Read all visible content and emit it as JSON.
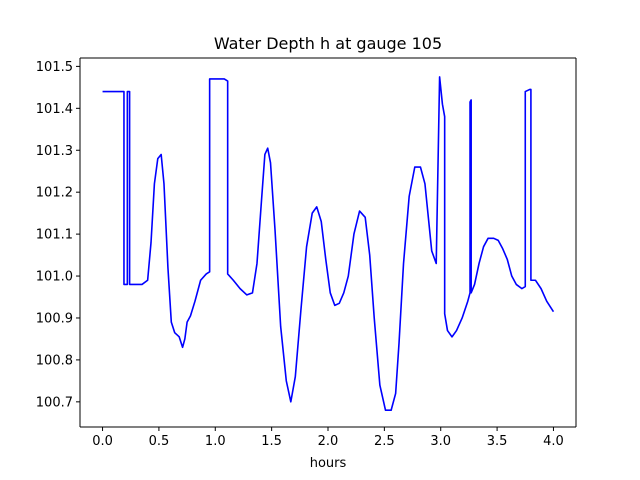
{
  "chart_data": {
    "type": "line",
    "title": "Water Depth h at gauge 105",
    "xlabel": "hours",
    "ylabel": "",
    "xlim": [
      -0.2,
      4.2
    ],
    "ylim": [
      100.64,
      101.52
    ],
    "grid": false,
    "legend": "none",
    "x_ticks": [
      0.0,
      0.5,
      1.0,
      1.5,
      2.0,
      2.5,
      3.0,
      3.5,
      4.0
    ],
    "x_tick_labels": [
      "0.0",
      "0.5",
      "1.0",
      "1.5",
      "2.0",
      "2.5",
      "3.0",
      "3.5",
      "4.0"
    ],
    "y_ticks": [
      100.7,
      100.8,
      100.9,
      101.0,
      101.1,
      101.2,
      101.3,
      101.4,
      101.5
    ],
    "y_tick_labels": [
      "100.7",
      "100.8",
      "100.9",
      "101.0",
      "101.1",
      "101.2",
      "101.3",
      "101.4",
      "101.5"
    ],
    "colors": {
      "series": "#0000ff",
      "axes": "#000000",
      "background": "#ffffff"
    },
    "series": [
      {
        "x": [
          0.0,
          0.19,
          0.19,
          0.22,
          0.22,
          0.24,
          0.24,
          0.28,
          0.35,
          0.4,
          0.43,
          0.46,
          0.49,
          0.52,
          0.545,
          0.58,
          0.61,
          0.64,
          0.68,
          0.71,
          0.73,
          0.75,
          0.78,
          0.82,
          0.87,
          0.92,
          0.95,
          0.95,
          1.0,
          1.08,
          1.11,
          1.11,
          1.16,
          1.22,
          1.28,
          1.33,
          1.37,
          1.41,
          1.44,
          1.465,
          1.49,
          1.53,
          1.58,
          1.63,
          1.67,
          1.71,
          1.76,
          1.81,
          1.86,
          1.9,
          1.94,
          1.98,
          2.02,
          2.06,
          2.1,
          2.14,
          2.18,
          2.23,
          2.28,
          2.33,
          2.37,
          2.41,
          2.46,
          2.51,
          2.56,
          2.6,
          2.63,
          2.67,
          2.72,
          2.77,
          2.82,
          2.86,
          2.89,
          2.92,
          2.96,
          2.99,
          2.99,
          3.015,
          3.035,
          3.035,
          3.06,
          3.1,
          3.14,
          3.19,
          3.24,
          3.26,
          3.26,
          3.27,
          3.27,
          3.3,
          3.34,
          3.38,
          3.42,
          3.47,
          3.51,
          3.55,
          3.59,
          3.63,
          3.67,
          3.72,
          3.75,
          3.75,
          3.79,
          3.8,
          3.8,
          3.84,
          3.89,
          3.94,
          4.0
        ],
        "y": [
          101.44,
          101.44,
          100.98,
          100.98,
          101.44,
          101.44,
          100.98,
          100.98,
          100.98,
          100.99,
          101.08,
          101.22,
          101.28,
          101.29,
          101.22,
          101.02,
          100.89,
          100.865,
          100.855,
          100.83,
          100.85,
          100.89,
          100.905,
          100.94,
          100.99,
          101.005,
          101.01,
          101.47,
          101.47,
          101.47,
          101.465,
          101.005,
          100.99,
          100.97,
          100.955,
          100.96,
          101.03,
          101.18,
          101.29,
          101.305,
          101.27,
          101.11,
          100.88,
          100.75,
          100.7,
          100.76,
          100.92,
          101.07,
          101.15,
          101.165,
          101.13,
          101.04,
          100.96,
          100.93,
          100.935,
          100.96,
          101.0,
          101.1,
          101.155,
          101.14,
          101.05,
          100.9,
          100.74,
          100.68,
          100.68,
          100.72,
          100.84,
          101.03,
          101.19,
          101.26,
          101.26,
          101.22,
          101.14,
          101.06,
          101.03,
          101.475,
          101.475,
          101.41,
          101.38,
          100.91,
          100.87,
          100.855,
          100.87,
          100.9,
          100.94,
          100.96,
          101.415,
          101.42,
          100.96,
          100.98,
          101.03,
          101.07,
          101.09,
          101.09,
          101.085,
          101.065,
          101.04,
          101.0,
          100.98,
          100.97,
          100.975,
          101.44,
          101.445,
          101.445,
          100.99,
          100.99,
          100.97,
          100.94,
          100.915
        ]
      }
    ]
  }
}
